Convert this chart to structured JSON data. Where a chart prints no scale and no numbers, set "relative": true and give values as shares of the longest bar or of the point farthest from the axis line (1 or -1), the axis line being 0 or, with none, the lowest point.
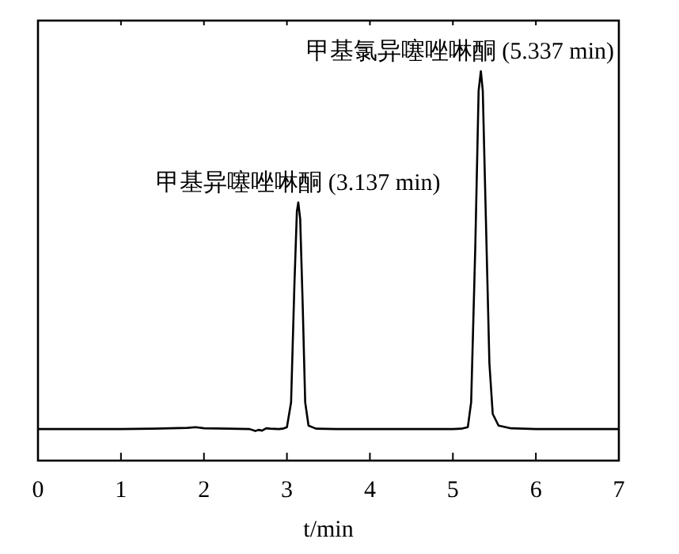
{
  "chart_data": {
    "type": "line",
    "relative": true,
    "xlabel": "t/min",
    "xlim": [
      0,
      7
    ],
    "xticks": [
      0,
      1,
      2,
      3,
      4,
      5,
      6,
      7
    ],
    "grid": false,
    "line_style": "solid",
    "series": [
      {
        "color": "#000000",
        "x": [
          0,
          0.5,
          1.0,
          1.4,
          1.8,
          1.9,
          2.0,
          2.3,
          2.55,
          2.62,
          2.66,
          2.7,
          2.75,
          2.8,
          2.9,
          2.95,
          3.0,
          3.05,
          3.09,
          3.12,
          3.137,
          3.16,
          3.19,
          3.22,
          3.26,
          3.35,
          3.6,
          4.0,
          4.5,
          5.0,
          5.1,
          5.18,
          5.22,
          5.27,
          5.31,
          5.337,
          5.36,
          5.4,
          5.44,
          5.48,
          5.55,
          5.7,
          6.0,
          6.5,
          7.0
        ],
        "values": [
          0.081,
          0.081,
          0.081,
          0.082,
          0.084,
          0.086,
          0.083,
          0.082,
          0.081,
          0.076,
          0.079,
          0.077,
          0.083,
          0.082,
          0.081,
          0.082,
          0.086,
          0.15,
          0.45,
          0.64,
          0.663,
          0.62,
          0.4,
          0.15,
          0.09,
          0.082,
          0.081,
          0.081,
          0.081,
          0.081,
          0.082,
          0.086,
          0.15,
          0.55,
          0.95,
          1,
          0.95,
          0.6,
          0.25,
          0.12,
          0.09,
          0.083,
          0.081,
          0.081,
          0.081
        ]
      }
    ],
    "annotations": [
      {
        "text": "甲基异噻唑啉酮 (3.137 min)",
        "x": 3.137,
        "y": 0.663
      },
      {
        "text": "甲基氯异噻唑啉酮 (5.337 min)",
        "x": 5.337,
        "y": 1
      }
    ]
  }
}
